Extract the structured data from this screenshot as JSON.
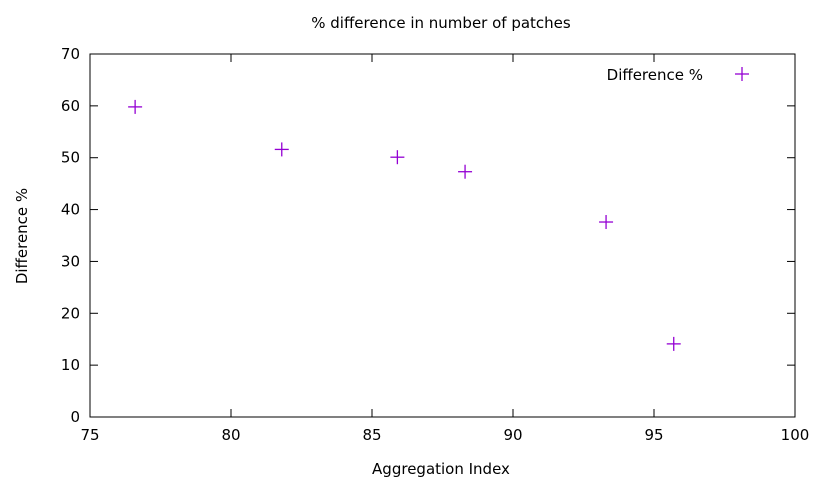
{
  "chart_data": {
    "type": "scatter",
    "title": "% difference in number of patches",
    "xlabel": "Aggregation Index",
    "ylabel": "Difference %",
    "xlim": [
      75,
      100
    ],
    "ylim": [
      0,
      70
    ],
    "xticks": [
      75,
      80,
      85,
      90,
      95,
      100
    ],
    "yticks": [
      0,
      10,
      20,
      30,
      40,
      50,
      60,
      70
    ],
    "grid": false,
    "legend_position": "top-right",
    "series": [
      {
        "name": "Difference %",
        "color": "#9400d3",
        "marker": "plus",
        "x": [
          76.6,
          81.8,
          85.9,
          88.3,
          93.3,
          95.7
        ],
        "y": [
          59.8,
          51.6,
          50.1,
          47.3,
          37.6,
          14.1
        ]
      }
    ]
  }
}
